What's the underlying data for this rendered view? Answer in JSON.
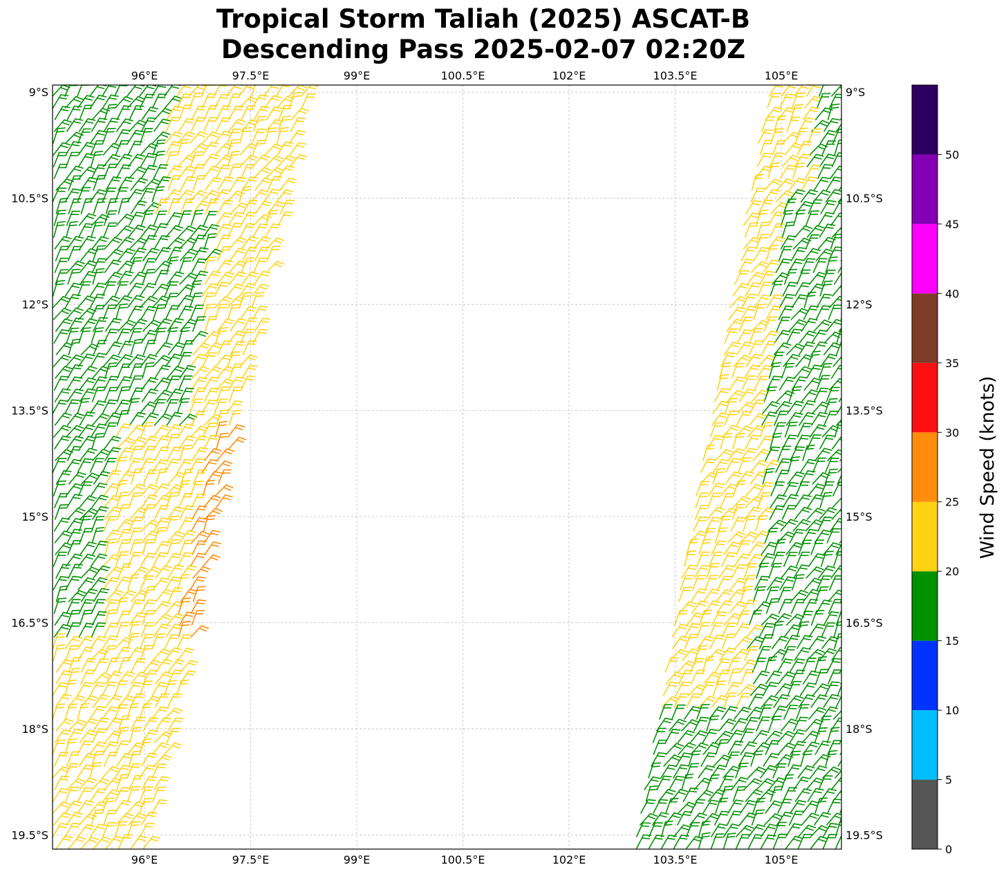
{
  "title": {
    "line1": "Tropical Storm Taliah (2025) ASCAT-B",
    "line2": "Descending Pass 2025-02-07 02:20Z"
  },
  "map": {
    "lon_range": [
      94.7,
      105.85
    ],
    "lat_range": [
      -19.7,
      -8.9
    ],
    "lon_ticks": [
      {
        "value": 96.0,
        "label": "96°E"
      },
      {
        "value": 97.5,
        "label": "97.5°E"
      },
      {
        "value": 99.0,
        "label": "99°E"
      },
      {
        "value": 100.5,
        "label": "100.5°E"
      },
      {
        "value": 102.0,
        "label": "102°E"
      },
      {
        "value": 103.5,
        "label": "103.5°E"
      },
      {
        "value": 105.0,
        "label": "105°E"
      }
    ],
    "lat_ticks": [
      {
        "value": -9.0,
        "label": "9°S"
      },
      {
        "value": -10.5,
        "label": "10.5°S"
      },
      {
        "value": -12.0,
        "label": "12°S"
      },
      {
        "value": -13.5,
        "label": "13.5°S"
      },
      {
        "value": -15.0,
        "label": "15°S"
      },
      {
        "value": -16.5,
        "label": "16.5°S"
      },
      {
        "value": -18.0,
        "label": "18°S"
      },
      {
        "value": -19.5,
        "label": "19.5°S"
      }
    ],
    "gridlines": true
  },
  "colorbar": {
    "label": "Wind Speed (knots)",
    "bins": [
      {
        "min": 0,
        "max": 5,
        "color": "#555555"
      },
      {
        "min": 5,
        "max": 10,
        "color": "#00bfff"
      },
      {
        "min": 10,
        "max": 15,
        "color": "#0033ff"
      },
      {
        "min": 15,
        "max": 20,
        "color": "#009100"
      },
      {
        "min": 20,
        "max": 25,
        "color": "#ffd214"
      },
      {
        "min": 25,
        "max": 30,
        "color": "#ff8c0a"
      },
      {
        "min": 30,
        "max": 35,
        "color": "#ff1010"
      },
      {
        "min": 35,
        "max": 40,
        "color": "#7f3c28"
      },
      {
        "min": 40,
        "max": 45,
        "color": "#ff00ff"
      },
      {
        "min": 45,
        "max": 50,
        "color": "#8300b4"
      },
      {
        "min": 50,
        "max": 55,
        "color": "#2d0060"
      }
    ],
    "tick_values": [
      "0",
      "5",
      "10",
      "15",
      "20",
      "25",
      "30",
      "35",
      "40",
      "45",
      "50"
    ]
  },
  "swaths": {
    "west": {
      "lat_top": -8.9,
      "lat_bottom": -19.7,
      "lon_left_top": 94.7,
      "lon_right_top": 98.3,
      "lon_left_bottom": 94.7,
      "lon_right_bottom": 96.0,
      "zones": [
        {
          "lat_from": -8.9,
          "lat_to": -10.7,
          "fraction_from": 0.0,
          "fraction_to": 0.45,
          "color": "#009100"
        },
        {
          "lat_from": -8.9,
          "lat_to": -10.7,
          "fraction_from": 0.45,
          "fraction_to": 1.0,
          "color": "#ffd214"
        },
        {
          "lat_from": -10.7,
          "lat_to": -13.7,
          "fraction_from": 0.0,
          "fraction_to": 0.7,
          "color": "#009100"
        },
        {
          "lat_from": -10.7,
          "lat_to": -13.7,
          "fraction_from": 0.7,
          "fraction_to": 1.0,
          "color": "#ffd214"
        },
        {
          "lat_from": -13.7,
          "lat_to": -16.7,
          "fraction_from": 0.0,
          "fraction_to": 0.3,
          "color": "#009100"
        },
        {
          "lat_from": -13.7,
          "lat_to": -16.7,
          "fraction_from": 0.3,
          "fraction_to": 0.85,
          "color": "#ffd214"
        },
        {
          "lat_from": -13.7,
          "lat_to": -16.7,
          "fraction_from": 0.85,
          "fraction_to": 1.0,
          "color": "#ff8c0a"
        },
        {
          "lat_from": -16.7,
          "lat_to": -19.7,
          "fraction_from": 0.0,
          "fraction_to": 1.0,
          "color": "#ffd214"
        }
      ]
    },
    "east": {
      "lat_top": -8.9,
      "lat_bottom": -19.7,
      "lon_left_top": 104.8,
      "lon_right_top": 105.85,
      "lon_left_bottom": 102.9,
      "lon_right_bottom": 105.85,
      "zones": [
        {
          "lat_from": -8.9,
          "lat_to": -10.3,
          "fraction_from": 0.0,
          "fraction_to": 0.6,
          "color": "#ffd214"
        },
        {
          "lat_from": -8.9,
          "lat_to": -10.3,
          "fraction_from": 0.6,
          "fraction_to": 1.0,
          "color": "#009100"
        },
        {
          "lat_from": -10.3,
          "lat_to": -13.7,
          "fraction_from": 0.0,
          "fraction_to": 0.35,
          "color": "#ffd214"
        },
        {
          "lat_from": -10.3,
          "lat_to": -13.7,
          "fraction_from": 0.35,
          "fraction_to": 1.0,
          "color": "#009100"
        },
        {
          "lat_from": -13.7,
          "lat_to": -17.6,
          "fraction_from": 0.0,
          "fraction_to": 0.45,
          "color": "#ffd214"
        },
        {
          "lat_from": -13.7,
          "lat_to": -17.6,
          "fraction_from": 0.45,
          "fraction_to": 1.0,
          "color": "#009100"
        },
        {
          "lat_from": -17.6,
          "lat_to": -19.7,
          "fraction_from": 0.0,
          "fraction_to": 1.0,
          "color": "#009100"
        }
      ]
    }
  }
}
